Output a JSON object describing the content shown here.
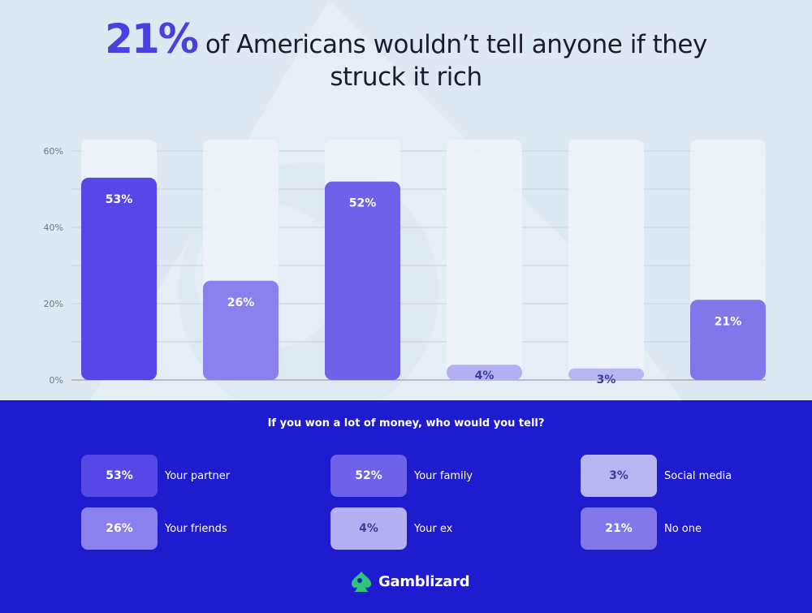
{
  "headline": {
    "highlight": "21%",
    "text_line1": "of Americans wouldn’t tell anyone if they",
    "text_line2": "struck it rich"
  },
  "chart_data": {
    "type": "bar",
    "categories": [
      "Your partner",
      "Your friends",
      "Your family",
      "Your ex",
      "Social media",
      "No one"
    ],
    "values": [
      53,
      26,
      52,
      4,
      3,
      21
    ],
    "value_labels": [
      "53%",
      "26%",
      "52%",
      "4%",
      "3%",
      "21%"
    ],
    "bar_colors": [
      "#5548e6",
      "#8b81ee",
      "#6d62e8",
      "#b4b0f3",
      "#b8b6f2",
      "#8177ea"
    ],
    "label_colors": [
      "#ffffff",
      "#ffffff",
      "#ffffff",
      "#3a3f99",
      "#3a3f99",
      "#ffffff"
    ],
    "ylim": [
      0,
      60
    ],
    "yticks": [
      0,
      20,
      40,
      60
    ],
    "ytick_labels": [
      "0%",
      "20%",
      "40%",
      "60%"
    ],
    "grid": true,
    "title": "",
    "xlabel": "",
    "ylabel": ""
  },
  "legend": {
    "question": "If you won a lot of money, who would you tell?",
    "items": [
      {
        "value": "53%",
        "label": "Your partner",
        "color": "#5548e6",
        "text_color": "#ffffff"
      },
      {
        "value": "52%",
        "label": "Your family",
        "color": "#6d62e8",
        "text_color": "#ffffff"
      },
      {
        "value": "3%",
        "label": "Social media",
        "color": "#b8b6f2",
        "text_color": "#3a3f99"
      },
      {
        "value": "26%",
        "label": "Your friends",
        "color": "#8b81ee",
        "text_color": "#ffffff"
      },
      {
        "value": "4%",
        "label": "Your ex",
        "color": "#b4b0f3",
        "text_color": "#3a3f99"
      },
      {
        "value": "21%",
        "label": "No one",
        "color": "#8177ea",
        "text_color": "#ffffff"
      }
    ]
  },
  "brand": {
    "name": "Gamblizard",
    "icon": "gamblizard-logo-icon",
    "logo_color": "#2ec47a"
  }
}
